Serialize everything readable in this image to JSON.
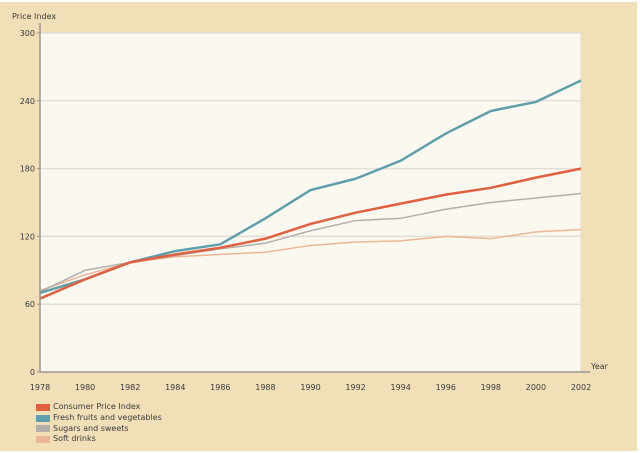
{
  "chart_data": {
    "type": "line",
    "title": "",
    "xlabel": "Year",
    "ylabel": "Price Index",
    "xlim": [
      1978,
      2002
    ],
    "ylim": [
      0,
      300
    ],
    "yticks": [
      0,
      60,
      120,
      180,
      240,
      300
    ],
    "xticks": [
      1978,
      1980,
      1982,
      1984,
      1986,
      1988,
      1990,
      1992,
      1994,
      1996,
      1998,
      2000,
      2002
    ],
    "grid": "horizontal",
    "legend_position": "bottom-left",
    "x": [
      1978,
      1980,
      1982,
      1984,
      1986,
      1988,
      1990,
      1992,
      1994,
      1996,
      1998,
      2000,
      2002
    ],
    "series": [
      {
        "name": "Consumer Price Index",
        "color": "#e0603f",
        "values": [
          65,
          82,
          97,
          104,
          110,
          118,
          131,
          141,
          149,
          157,
          163,
          172,
          180
        ]
      },
      {
        "name": "Fresh fruits and vegetables",
        "color": "#5f9eab",
        "values": [
          70,
          82,
          97,
          107,
          113,
          136,
          161,
          171,
          187,
          211,
          231,
          239,
          258
        ]
      },
      {
        "name": "Sugars and sweets",
        "color": "#b3b0ab",
        "values": [
          71,
          90,
          97,
          103,
          109,
          114,
          125,
          134,
          136,
          144,
          150,
          154,
          158
        ]
      },
      {
        "name": "Soft drinks",
        "color": "#ecb696",
        "values": [
          72,
          86,
          97,
          102,
          104,
          106,
          112,
          115,
          116,
          120,
          118,
          124,
          126
        ]
      }
    ]
  }
}
